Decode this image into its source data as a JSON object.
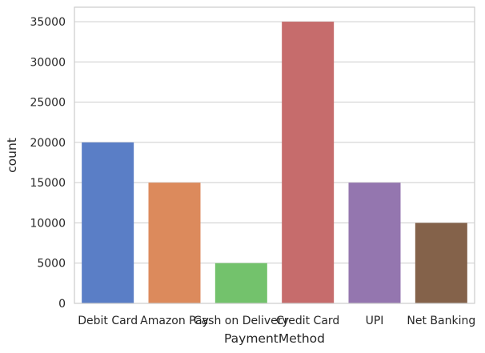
{
  "chart_data": {
    "type": "bar",
    "title": "",
    "xlabel": "PaymentMethod",
    "ylabel": "count",
    "categories": [
      "Debit Card",
      "Amazon Pay",
      "Cash on Delivery",
      "Credit Card",
      "UPI",
      "Net Banking"
    ],
    "values": [
      20000,
      15000,
      5000,
      35000,
      15000,
      10000
    ],
    "colors": [
      "#5a7ec6",
      "#dc8a5c",
      "#73c26c",
      "#c66c6c",
      "#9476af",
      "#84624a"
    ],
    "ylim": [
      0,
      36800
    ],
    "yticks": [
      0,
      5000,
      10000,
      15000,
      20000,
      25000,
      30000,
      35000
    ],
    "grid": true,
    "style": "seaborn whitegrid"
  }
}
